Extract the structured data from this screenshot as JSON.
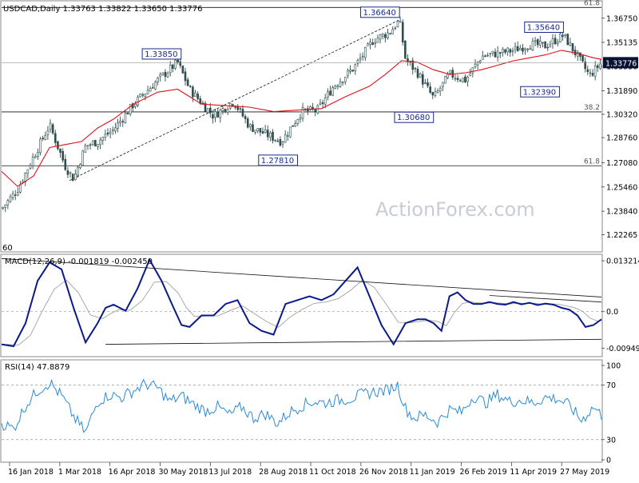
{
  "chart_data": {
    "type": "line",
    "symbol": "USDCAD,Daily",
    "ohlc_text": "1.33763 1.33822 1.33650 1.33776",
    "watermark": "ActionForex.com",
    "last_price_label": "1.33776",
    "price_axis": {
      "range": [
        1.2117,
        1.3786
      ],
      "ticks": [
        "1.36750",
        "1.35135",
        "1.33530",
        "1.31890",
        "1.30320",
        "1.28760",
        "1.27080",
        "1.25460",
        "1.23840",
        "1.22265"
      ]
    },
    "time_axis": {
      "labels": [
        "16 Jan 2018",
        "1 Mar 2018",
        "16 Apr 2018",
        "30 May 2018",
        "13 Jul 2018",
        "28 Aug 2018",
        "11 Oct 2018",
        "26 Nov 2018",
        "11 Jan 2019",
        "26 Feb 2019",
        "11 Apr 2019",
        "27 May 2019"
      ]
    },
    "fib_levels": [
      {
        "label": "61.8",
        "value": 1.3747
      },
      {
        "label": "38.2",
        "value": 1.3048
      },
      {
        "label": "61.8",
        "value": 1.2688
      }
    ],
    "corner_label": "60",
    "pivot_labels": [
      {
        "label": "1.36640",
        "x": 99.5,
        "value": 1.3664
      },
      {
        "label": "1.35640",
        "x": 140.5,
        "value": 1.3564
      },
      {
        "label": "1.33850",
        "x": 44.5,
        "value": 1.3385
      },
      {
        "label": "1.32390",
        "x": 139.5,
        "value": 1.3239
      },
      {
        "label": "1.30680",
        "x": 108,
        "value": 1.3068
      },
      {
        "label": "1.27810",
        "x": 74,
        "value": 1.2781
      }
    ],
    "price_series": {
      "x": [
        0,
        4,
        8,
        12,
        16,
        18,
        21,
        24,
        28,
        33,
        39,
        44,
        47,
        53,
        58,
        62,
        66,
        70,
        75,
        79,
        83,
        88,
        93,
        97,
        99.5,
        101,
        104,
        108,
        112,
        116,
        120,
        124,
        128,
        132,
        136,
        140.5,
        144,
        147,
        150
      ],
      "y": [
        1.24,
        1.253,
        1.275,
        1.296,
        1.268,
        1.26,
        1.282,
        1.285,
        1.293,
        1.31,
        1.326,
        1.338,
        1.32,
        1.302,
        1.312,
        1.295,
        1.29,
        1.285,
        1.305,
        1.306,
        1.322,
        1.334,
        1.353,
        1.358,
        1.366,
        1.34,
        1.331,
        1.314,
        1.33,
        1.326,
        1.342,
        1.344,
        1.346,
        1.35,
        1.349,
        1.356,
        1.342,
        1.329,
        1.3378
      ]
    },
    "ma_series": {
      "x": [
        0,
        4,
        8,
        12,
        16,
        20,
        24,
        28,
        33,
        39,
        44,
        50,
        56,
        62,
        68,
        74,
        80,
        86,
        92,
        96,
        100,
        104,
        108,
        112,
        116,
        120,
        124,
        128,
        132,
        136,
        140,
        144,
        148,
        150
      ],
      "y": [
        1.265,
        1.255,
        1.262,
        1.281,
        1.283,
        1.285,
        1.294,
        1.3,
        1.31,
        1.318,
        1.32,
        1.31,
        1.309,
        1.308,
        1.305,
        1.306,
        1.307,
        1.315,
        1.322,
        1.33,
        1.339,
        1.338,
        1.333,
        1.33,
        1.331,
        1.333,
        1.336,
        1.339,
        1.341,
        1.343,
        1.346,
        1.344,
        1.341,
        1.34
      ]
    },
    "macd": {
      "label": "MACD(12,26,9) -0.001819 -0.002450",
      "range": [
        -0.0115,
        0.0147
      ],
      "ticks": [
        "0.013214",
        "0.0",
        "-0.009496"
      ],
      "macd_series": {
        "x": [
          0,
          3,
          6,
          9,
          12,
          15,
          18,
          21,
          24,
          26,
          28,
          31,
          34,
          37,
          40,
          43,
          45,
          47,
          50,
          53,
          56,
          59,
          62,
          65,
          68,
          71,
          74,
          77,
          80,
          83,
          86,
          89,
          92,
          95,
          98,
          101,
          104,
          106,
          108,
          110,
          112,
          114,
          116,
          118,
          120,
          122,
          124,
          126,
          128,
          130,
          132,
          134,
          136,
          138,
          140,
          142,
          144,
          146,
          148,
          150
        ],
        "y": [
          -0.0085,
          -0.009,
          -0.003,
          0.008,
          0.0128,
          0.011,
          0.001,
          -0.008,
          -0.003,
          0.001,
          0.0018,
          0.0002,
          0.006,
          0.0135,
          0.008,
          0.001,
          -0.0035,
          -0.004,
          -0.001,
          -0.001,
          0.002,
          0.003,
          -0.003,
          -0.005,
          -0.006,
          0.002,
          0.003,
          0.004,
          0.003,
          0.0045,
          0.008,
          0.0115,
          0.004,
          -0.0035,
          -0.0085,
          -0.003,
          -0.002,
          -0.002,
          -0.003,
          -0.005,
          0.004,
          0.005,
          0.003,
          0.002,
          0.002,
          0.0025,
          0.002,
          0.0018,
          0.0025,
          0.0019,
          0.0023,
          0.0017,
          0.0021,
          0.0018,
          0.001,
          0.0005,
          -0.001,
          -0.004,
          -0.0035,
          -0.002
        ]
      },
      "upper_trendline": {
        "x": [
          0,
          150
        ],
        "y": [
          0.0138,
          0.0038
        ]
      },
      "lower_trendline": {
        "x": [
          26,
          150
        ],
        "y": [
          -0.0085,
          -0.0072
        ]
      },
      "recent_trendline": {
        "x": [
          122,
          150
        ],
        "y": [
          0.0042,
          0.0025
        ]
      }
    },
    "rsi": {
      "label": "RSI(14) 47.8879",
      "range": [
        14,
        88
      ],
      "ticks": [
        "100",
        "70",
        "30",
        "0"
      ],
      "levels": [
        70,
        30
      ],
      "series": {
        "x": [
          0,
          3,
          6,
          9,
          12,
          15,
          18,
          21,
          24,
          27,
          30,
          33,
          36,
          39,
          42,
          45,
          48,
          51,
          54,
          57,
          60,
          63,
          66,
          69,
          72,
          75,
          78,
          81,
          84,
          87,
          90,
          93,
          96,
          99,
          101,
          103,
          106,
          109,
          112,
          115,
          118,
          121,
          124,
          127,
          130,
          133,
          136,
          139,
          142,
          145,
          148,
          150
        ],
        "y": [
          42,
          38,
          55,
          66,
          72,
          62,
          47,
          35,
          58,
          63,
          61,
          66,
          71,
          68,
          58,
          62,
          56,
          51,
          54,
          48,
          54,
          46,
          49,
          42,
          50,
          55,
          58,
          57,
          59,
          60,
          63,
          65,
          66,
          70,
          53,
          46,
          48,
          43,
          52,
          50,
          62,
          57,
          63,
          58,
          59,
          57,
          61,
          60,
          55,
          44,
          54,
          47.89
        ]
      }
    }
  }
}
